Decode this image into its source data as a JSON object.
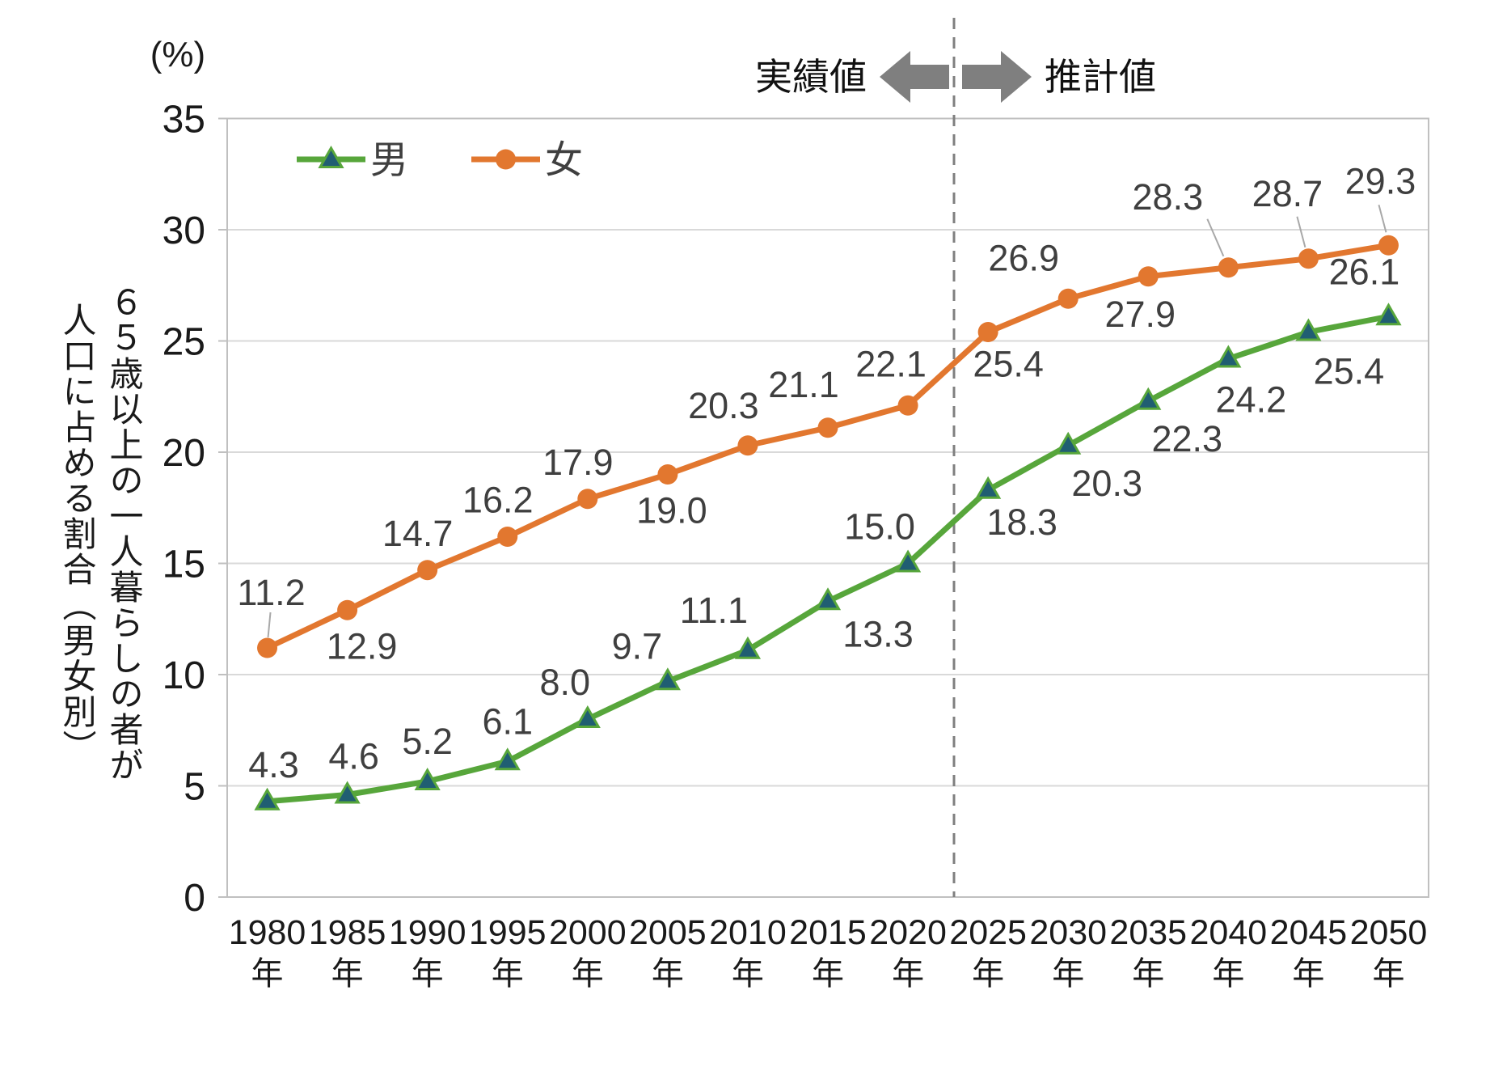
{
  "chart_data": {
    "type": "line",
    "unit_label": "(%)",
    "y_axis_title_lines": [
      "６５歳以上の一人暮らしの者が",
      "人口に占める割合（男女別）"
    ],
    "annotations": {
      "actual_label": "実績値",
      "projected_label": "推計値"
    },
    "categories": [
      "1980",
      "1985",
      "1990",
      "1995",
      "2000",
      "2005",
      "2010",
      "2015",
      "2020",
      "2025",
      "2030",
      "2035",
      "2040",
      "2045",
      "2050"
    ],
    "category_suffix": "年",
    "yticks": [
      0,
      5,
      10,
      15,
      20,
      25,
      30,
      35
    ],
    "ylim": [
      0,
      35
    ],
    "grid": "horizontal",
    "legend_position": "inside-top-left",
    "divider_between": [
      "2020",
      "2025"
    ],
    "series": [
      {
        "name": "男",
        "marker": "triangle",
        "color": "#57A63B",
        "marker_fill": "#205E72",
        "values": [
          4.3,
          4.6,
          5.2,
          6.1,
          8.0,
          9.7,
          11.1,
          13.3,
          15.0,
          18.3,
          20.3,
          22.3,
          24.2,
          25.4,
          26.1
        ]
      },
      {
        "name": "女",
        "marker": "circle",
        "color": "#E2772F",
        "marker_fill": "#E2772F",
        "values": [
          11.2,
          12.9,
          14.7,
          16.2,
          17.9,
          19.0,
          20.3,
          21.1,
          22.1,
          25.4,
          26.9,
          27.9,
          28.3,
          28.7,
          29.3
        ]
      }
    ],
    "colors": {
      "grid": "#D9D9D9",
      "border": "#C0C0C0",
      "divider": "#7F7F7F",
      "arrow": "#7F7F7F",
      "data_label": "#3F3F3F",
      "axis_text": "#1A1A1A",
      "leader": "#A8A8A8"
    }
  }
}
